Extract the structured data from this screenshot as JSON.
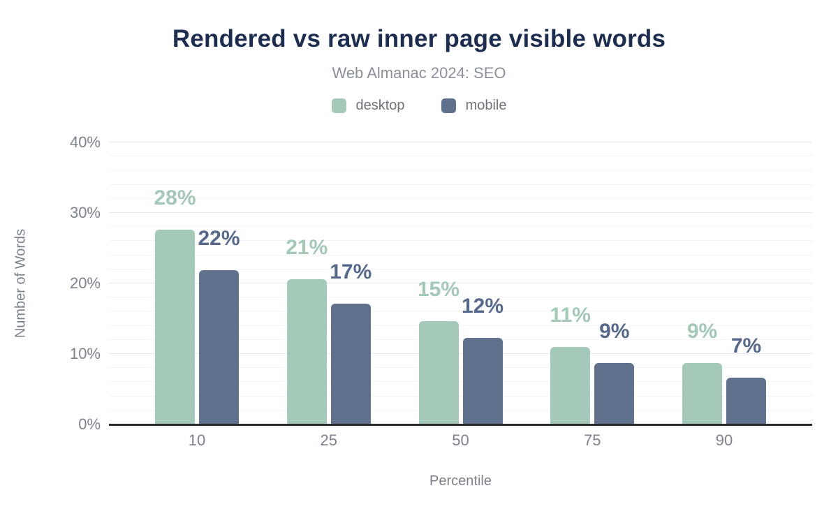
{
  "chart_data": {
    "type": "bar",
    "title": "Rendered vs raw inner page visible words",
    "subtitle": "Web Almanac 2024: SEO",
    "xlabel": "Percentile",
    "ylabel": "Number of Words",
    "categories": [
      "10",
      "25",
      "50",
      "75",
      "90"
    ],
    "series": [
      {
        "name": "desktop",
        "color": "#a5c9b8",
        "label_color": "#a3c8b6",
        "values": [
          27.6,
          20.6,
          14.7,
          11.0,
          8.7
        ],
        "labels": [
          "28%",
          "21%",
          "15%",
          "11%",
          "9%"
        ]
      },
      {
        "name": "mobile",
        "color": "#5f718c",
        "label_color": "#56698a",
        "values": [
          21.9,
          17.1,
          12.3,
          8.7,
          6.6
        ],
        "labels": [
          "22%",
          "17%",
          "12%",
          "9%",
          "7%"
        ]
      }
    ],
    "ylim": [
      0,
      40
    ],
    "yticks": [
      {
        "label": "0%",
        "value": 0
      },
      {
        "label": "10%",
        "value": 10
      },
      {
        "label": "20%",
        "value": 20
      },
      {
        "label": "30%",
        "value": 30
      },
      {
        "label": "40%",
        "value": 40
      }
    ],
    "grid": {
      "show": true,
      "minor_step": 2,
      "major_step": 10
    },
    "legend_position": "top-center",
    "colors": {
      "title": "#1d2d50",
      "subtitle": "#8a9099",
      "axis_text": "#7c828c",
      "baseline": "#292b30"
    }
  }
}
